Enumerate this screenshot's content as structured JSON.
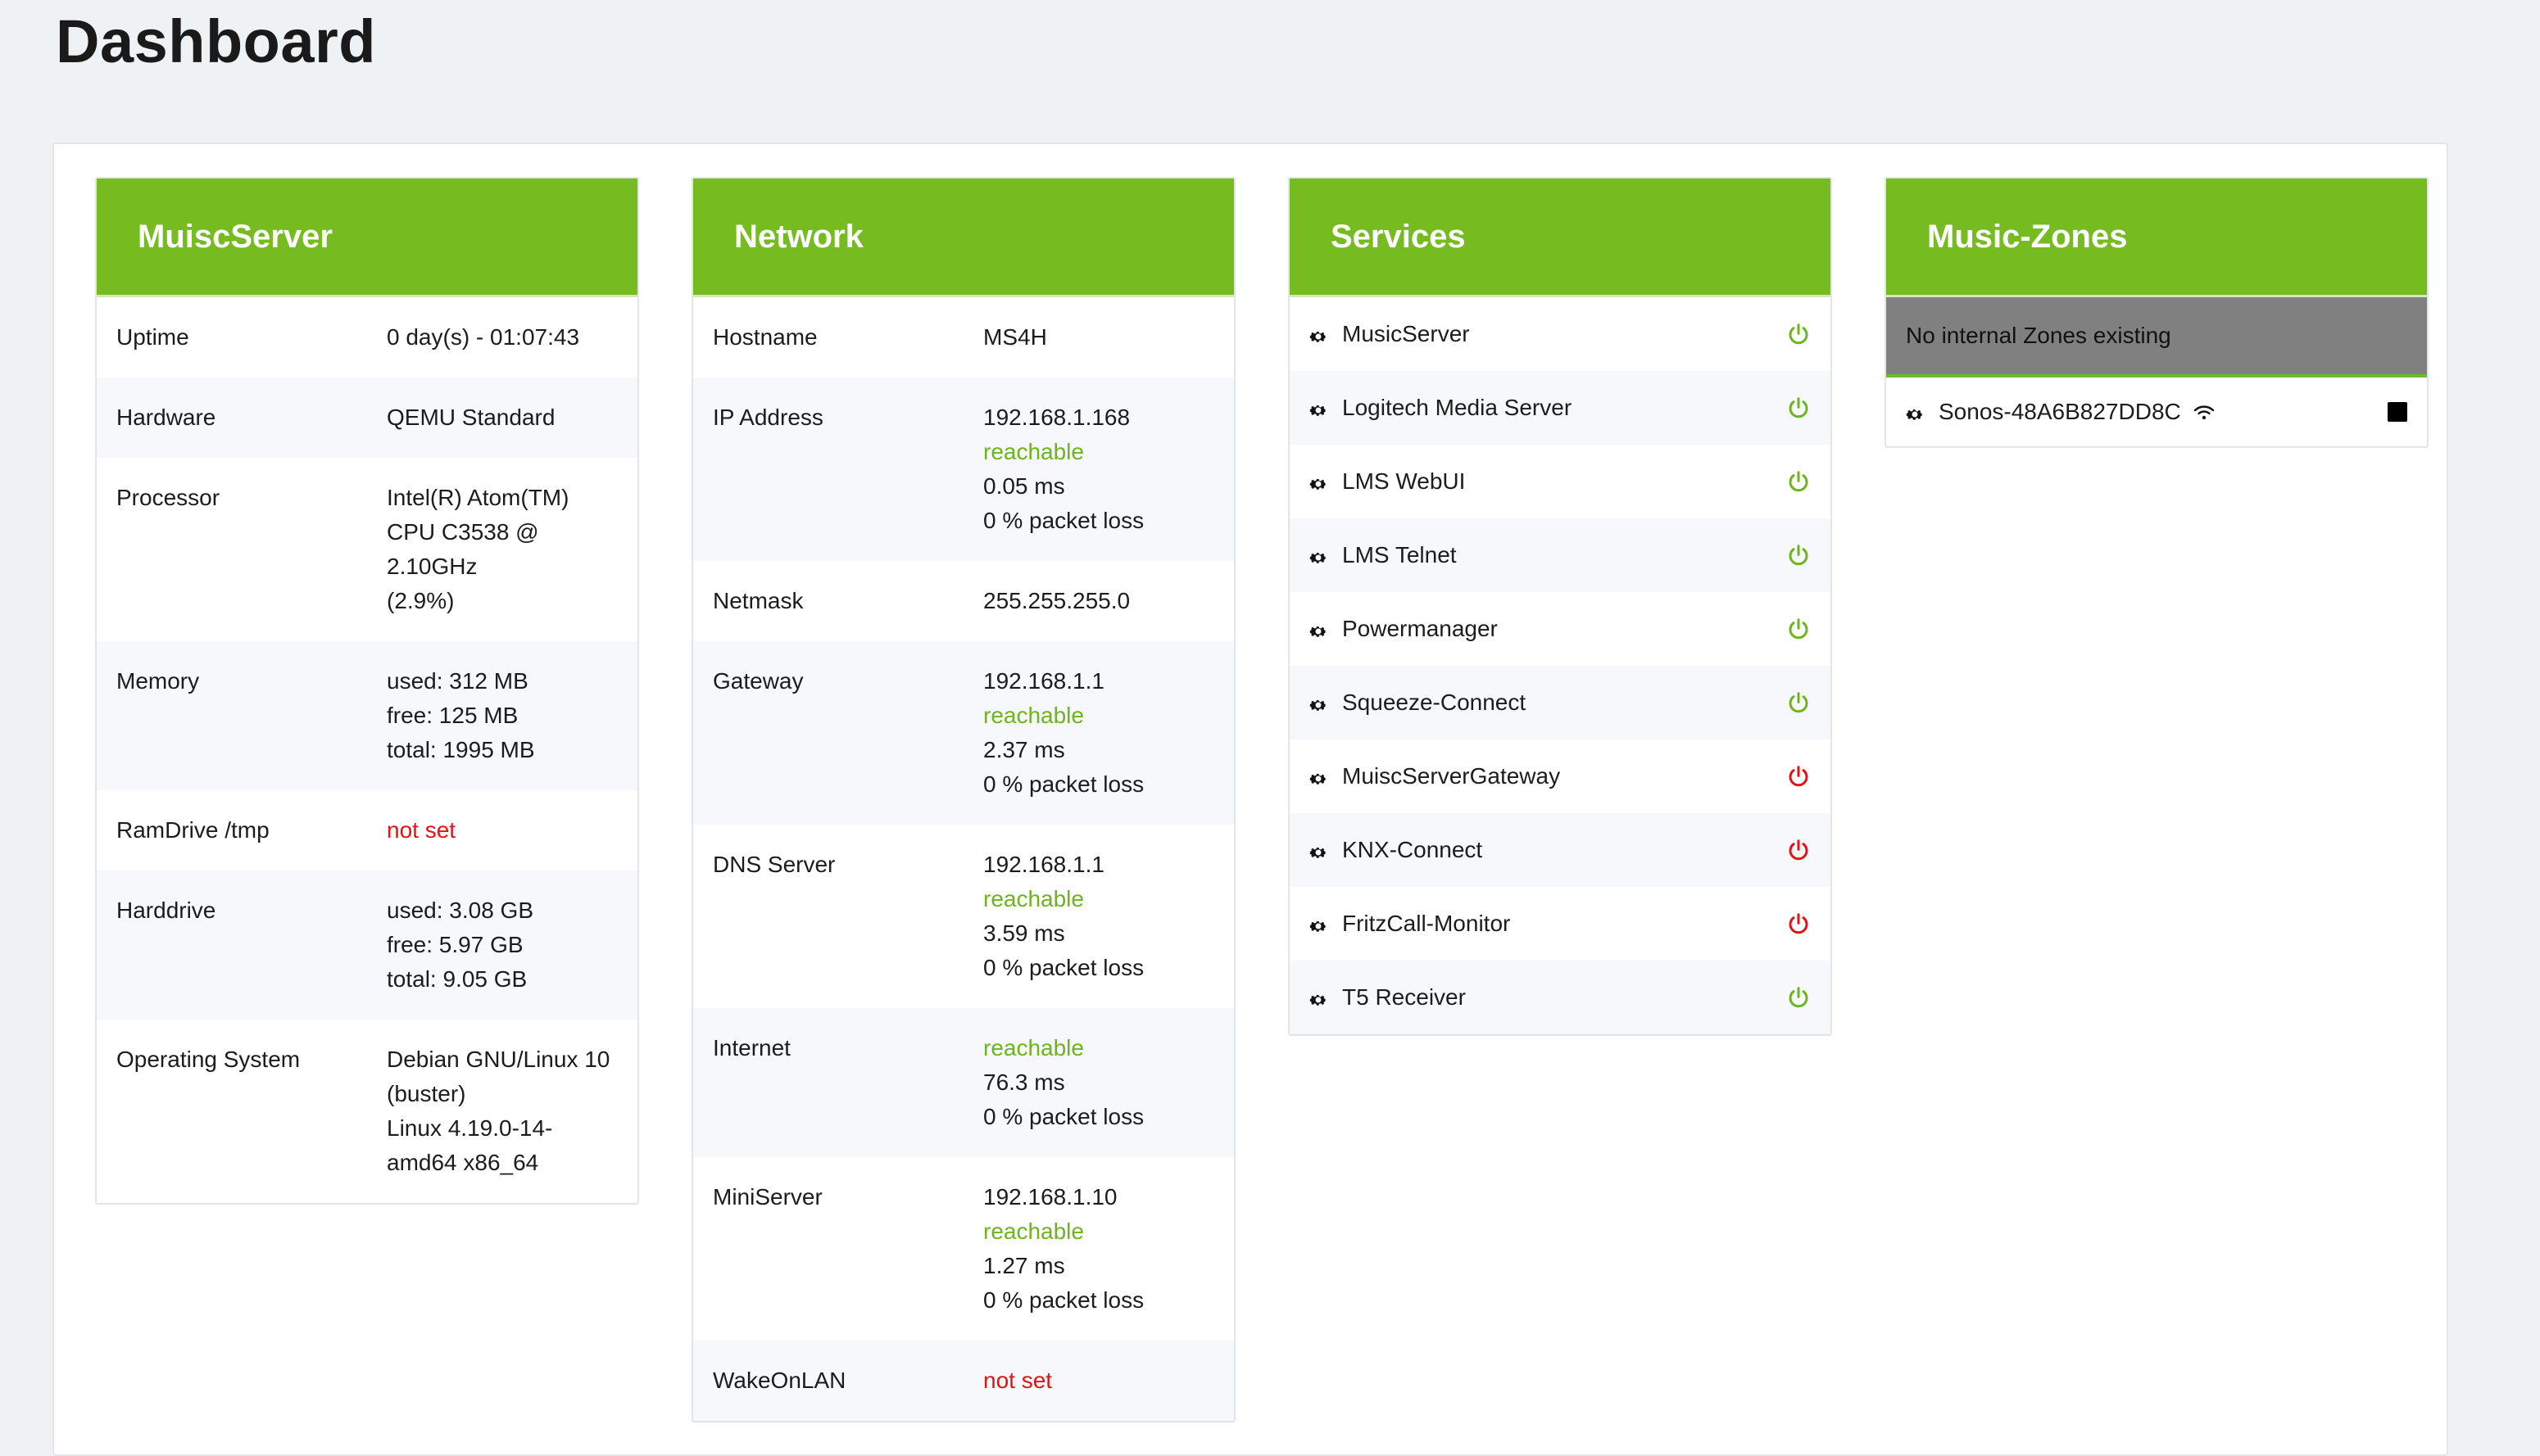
{
  "page": {
    "title": "Dashboard"
  },
  "colors": {
    "accent": "#76bc21",
    "ok": "#6db41e",
    "error": "#e11313"
  },
  "cards": {
    "server": {
      "title": "MuiscServer",
      "rows": [
        {
          "label": "Uptime",
          "lines": [
            {
              "text": "0 day(s) - 01:07:43",
              "status": "plain"
            }
          ]
        },
        {
          "label": "Hardware",
          "lines": [
            {
              "text": "QEMU Standard",
              "status": "plain"
            }
          ]
        },
        {
          "label": "Processor",
          "lines": [
            {
              "text": "Intel(R) Atom(TM)",
              "status": "plain"
            },
            {
              "text": "CPU C3538 @",
              "status": "plain"
            },
            {
              "text": "2.10GHz",
              "status": "plain"
            },
            {
              "text": "(2.9%)",
              "status": "plain"
            }
          ]
        },
        {
          "label": "Memory",
          "lines": [
            {
              "text": "used: 312 MB",
              "status": "plain"
            },
            {
              "text": "free: 125 MB",
              "status": "plain"
            },
            {
              "text": "total: 1995 MB",
              "status": "plain"
            }
          ]
        },
        {
          "label": "RamDrive /tmp",
          "lines": [
            {
              "text": "not set",
              "status": "red"
            }
          ]
        },
        {
          "label": "Harddrive",
          "lines": [
            {
              "text": "used: 3.08 GB",
              "status": "plain"
            },
            {
              "text": "free: 5.97 GB",
              "status": "plain"
            },
            {
              "text": "total: 9.05 GB",
              "status": "plain"
            }
          ]
        },
        {
          "label": "Operating System",
          "lines": [
            {
              "text": "Debian GNU/Linux 10",
              "status": "plain"
            },
            {
              "text": "(buster)",
              "status": "plain"
            },
            {
              "text": "Linux 4.19.0-14-",
              "status": "plain"
            },
            {
              "text": "amd64 x86_64",
              "status": "plain"
            }
          ]
        }
      ]
    },
    "network": {
      "title": "Network",
      "rows": [
        {
          "label": "Hostname",
          "lines": [
            {
              "text": "MS4H",
              "status": "plain"
            }
          ]
        },
        {
          "label": "IP Address",
          "lines": [
            {
              "text": "192.168.1.168",
              "status": "plain"
            },
            {
              "text": "reachable",
              "status": "green"
            },
            {
              "text": "0.05 ms",
              "status": "plain"
            },
            {
              "text": "0 % packet loss",
              "status": "plain"
            }
          ]
        },
        {
          "label": "Netmask",
          "lines": [
            {
              "text": "255.255.255.0",
              "status": "plain"
            }
          ]
        },
        {
          "label": "Gateway",
          "lines": [
            {
              "text": "192.168.1.1",
              "status": "plain"
            },
            {
              "text": "reachable",
              "status": "green"
            },
            {
              "text": "2.37 ms",
              "status": "plain"
            },
            {
              "text": "0 % packet loss",
              "status": "plain"
            }
          ]
        },
        {
          "label": "DNS Server",
          "lines": [
            {
              "text": "192.168.1.1",
              "status": "plain"
            },
            {
              "text": "reachable",
              "status": "green"
            },
            {
              "text": "3.59 ms",
              "status": "plain"
            },
            {
              "text": "0 % packet loss",
              "status": "plain"
            }
          ]
        },
        {
          "label": "Internet",
          "lines": [
            {
              "text": "reachable",
              "status": "green"
            },
            {
              "text": "76.3 ms",
              "status": "plain"
            },
            {
              "text": "0 % packet loss",
              "status": "plain"
            }
          ]
        },
        {
          "label": "MiniServer",
          "lines": [
            {
              "text": "192.168.1.10",
              "status": "plain"
            },
            {
              "text": "reachable",
              "status": "green"
            },
            {
              "text": "1.27 ms",
              "status": "plain"
            },
            {
              "text": "0 % packet loss",
              "status": "plain"
            }
          ]
        },
        {
          "label": "WakeOnLAN",
          "lines": [
            {
              "text": "not set",
              "status": "red"
            }
          ]
        }
      ]
    },
    "services": {
      "title": "Services",
      "items": [
        {
          "name": "MusicServer",
          "running": true
        },
        {
          "name": "Logitech Media Server",
          "running": true
        },
        {
          "name": "LMS WebUI",
          "running": true
        },
        {
          "name": "LMS Telnet",
          "running": true
        },
        {
          "name": "Powermanager",
          "running": true
        },
        {
          "name": "Squeeze-Connect",
          "running": true
        },
        {
          "name": "MuiscServerGateway",
          "running": false
        },
        {
          "name": "KNX-Connect",
          "running": false
        },
        {
          "name": "FritzCall-Monitor",
          "running": false
        },
        {
          "name": "T5 Receiver",
          "running": true
        }
      ]
    },
    "zones": {
      "title": "Music-Zones",
      "empty_text": "No internal Zones existing",
      "items": [
        {
          "name": "Sonos-48A6B827DD8C",
          "icon": "wifi-icon",
          "action_icon": "stop-icon"
        }
      ]
    }
  },
  "icons": {
    "gear": "gear-icon",
    "power": "power-icon"
  }
}
